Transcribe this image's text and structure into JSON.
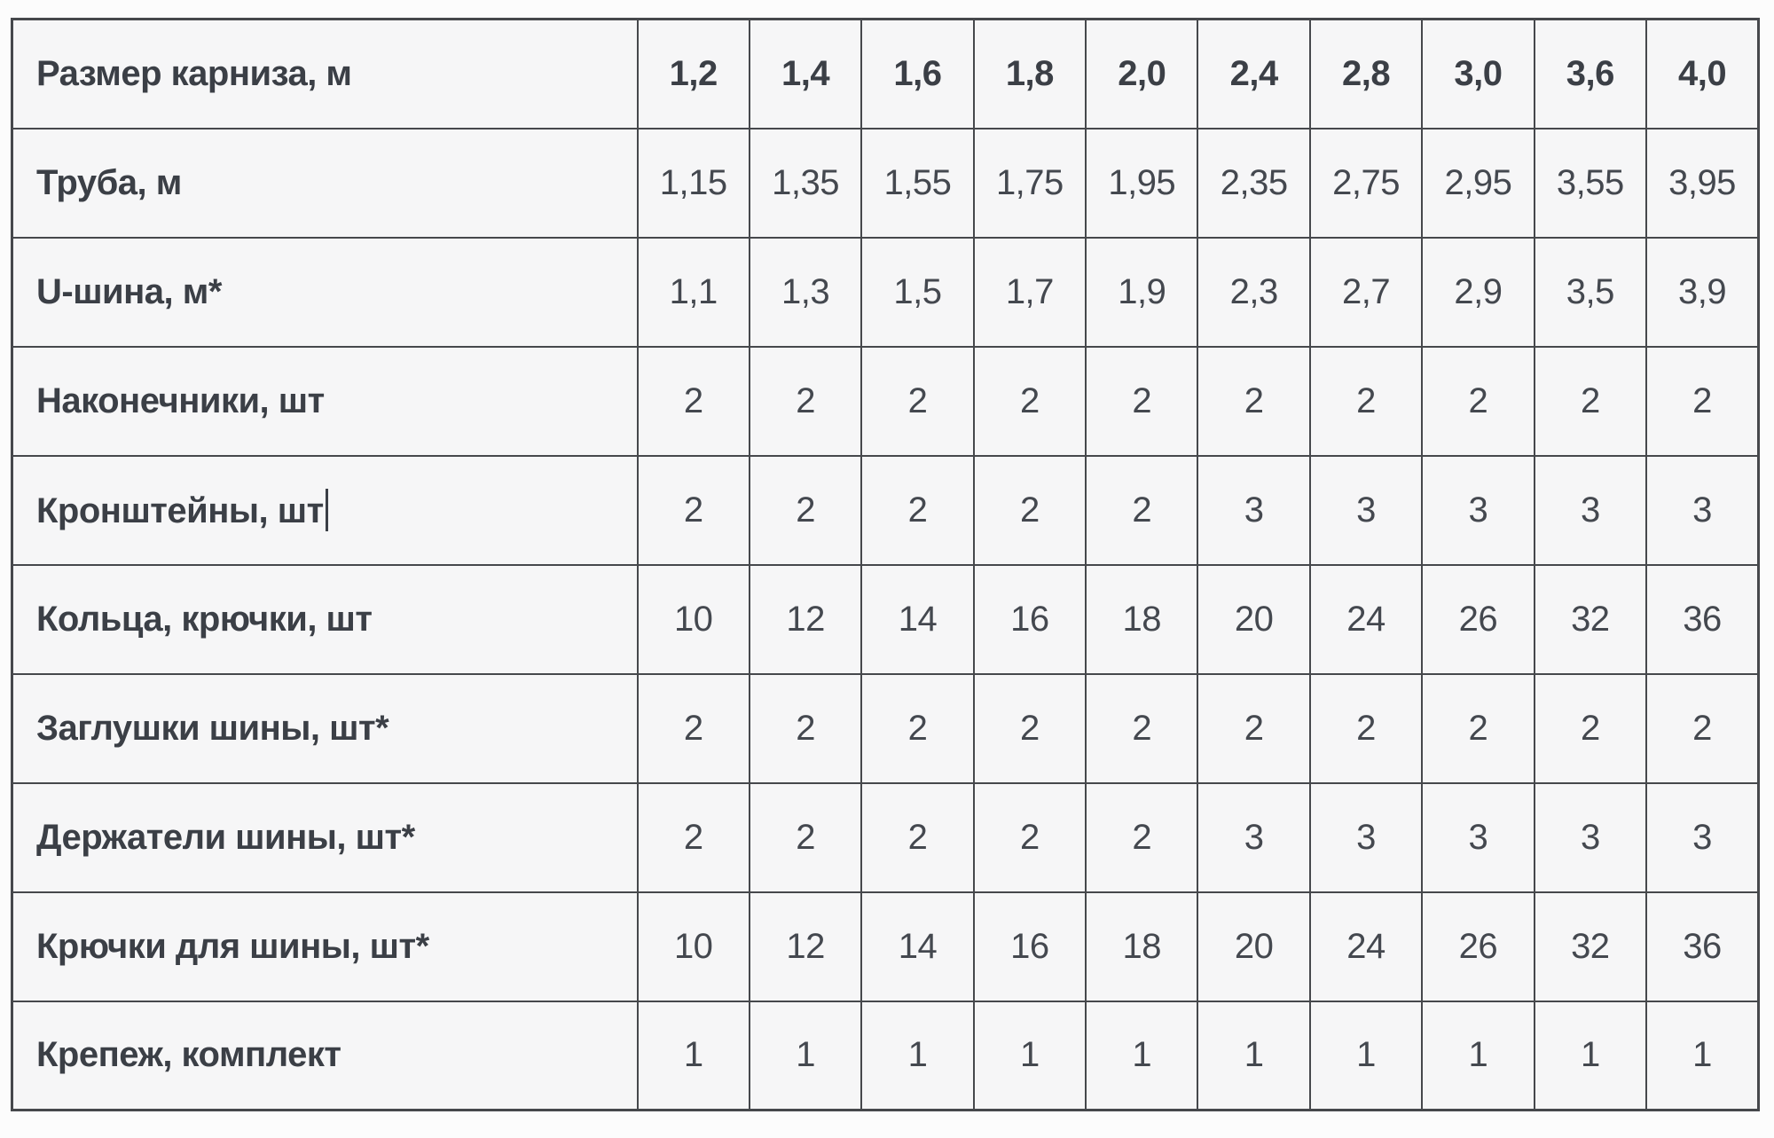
{
  "colors": {
    "page_background": "#fcfcfc",
    "cell_background": "#f6f6f7",
    "border": "#46484c",
    "label_text": "#3b3f46",
    "value_text": "#44484f"
  },
  "table": {
    "header": {
      "label": "Размер карниза, м",
      "values": [
        "1,2",
        "1,4",
        "1,6",
        "1,8",
        "2,0",
        "2,4",
        "2,8",
        "3,0",
        "3,6",
        "4,0"
      ]
    },
    "rows": [
      {
        "label": "Труба, м",
        "caret": false,
        "values": [
          "1,15",
          "1,35",
          "1,55",
          "1,75",
          "1,95",
          "2,35",
          "2,75",
          "2,95",
          "3,55",
          "3,95"
        ]
      },
      {
        "label": "U-шина, м*",
        "caret": false,
        "values": [
          "1,1",
          "1,3",
          "1,5",
          "1,7",
          "1,9",
          "2,3",
          "2,7",
          "2,9",
          "3,5",
          "3,9"
        ]
      },
      {
        "label": "Наконечники, шт",
        "caret": false,
        "values": [
          "2",
          "2",
          "2",
          "2",
          "2",
          "2",
          "2",
          "2",
          "2",
          "2"
        ]
      },
      {
        "label": "Кронштейны, шт",
        "caret": true,
        "values": [
          "2",
          "2",
          "2",
          "2",
          "2",
          "3",
          "3",
          "3",
          "3",
          "3"
        ]
      },
      {
        "label": "Кольца, крючки, шт",
        "caret": false,
        "values": [
          "10",
          "12",
          "14",
          "16",
          "18",
          "20",
          "24",
          "26",
          "32",
          "36"
        ]
      },
      {
        "label": "Заглушки шины, шт*",
        "caret": false,
        "values": [
          "2",
          "2",
          "2",
          "2",
          "2",
          "2",
          "2",
          "2",
          "2",
          "2"
        ]
      },
      {
        "label": "Держатели шины, шт*",
        "caret": false,
        "values": [
          "2",
          "2",
          "2",
          "2",
          "2",
          "3",
          "3",
          "3",
          "3",
          "3"
        ]
      },
      {
        "label": "Крючки для шины, шт*",
        "caret": false,
        "values": [
          "10",
          "12",
          "14",
          "16",
          "18",
          "20",
          "24",
          "26",
          "32",
          "36"
        ]
      },
      {
        "label": "Крепеж, комплект",
        "caret": false,
        "values": [
          "1",
          "1",
          "1",
          "1",
          "1",
          "1",
          "1",
          "1",
          "1",
          "1"
        ]
      }
    ]
  }
}
